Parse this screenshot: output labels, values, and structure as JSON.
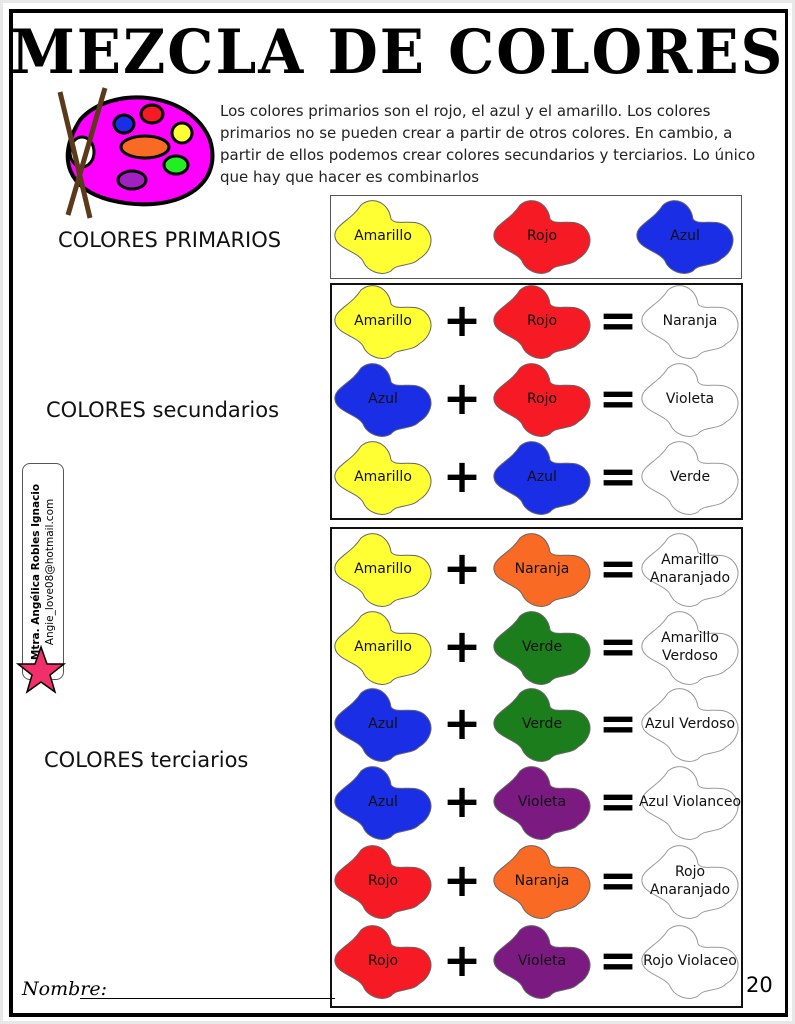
{
  "title": "MEZCLA DE COLORES",
  "intro": "Los colores primarios son el rojo, el azul y el amarillo. Los colores primarios no se pueden crear a partir de otros colores. En cambio, a partir de ellos podemos crear colores secundarios y terciarios. Lo único que hay que hacer es combinarlos",
  "sections": {
    "primary": "COLORES PRIMARIOS",
    "secondary": "COLORES secundarios",
    "tertiary": "COLORES terciarios"
  },
  "colors": {
    "Amarillo": "#ffff33",
    "Rojo": "#f51a24",
    "Azul": "#1a2ee6",
    "Naranja": "#f96a24",
    "Verde": "#1c7d1c",
    "Violeta": "#7b1a80",
    "result": "#ffffff"
  },
  "primaries": [
    "Amarillo",
    "Rojo",
    "Azul"
  ],
  "secondary_rows": [
    {
      "a": "Amarillo",
      "b": "Rojo",
      "result": "Naranja"
    },
    {
      "a": "Azul",
      "b": "Rojo",
      "result": "Violeta"
    },
    {
      "a": "Amarillo",
      "b": "Azul",
      "result": "Verde"
    }
  ],
  "tertiary_rows": [
    {
      "a": "Amarillo",
      "b": "Naranja",
      "result": "Amarillo Anaranjado"
    },
    {
      "a": "Amarillo",
      "b": "Verde",
      "result": "Amarillo Verdoso"
    },
    {
      "a": "Azul",
      "b": "Verde",
      "result": "Azul Verdoso"
    },
    {
      "a": "Azul",
      "b": "Violeta",
      "result": "Azul Violanceo"
    },
    {
      "a": "Rojo",
      "b": "Naranja",
      "result": "Rojo Anaranjado"
    },
    {
      "a": "Rojo",
      "b": "Violeta",
      "result": "Rojo Violaceo"
    }
  ],
  "operators": {
    "plus": "+",
    "equals": "="
  },
  "credit": {
    "name": "Mtra. Angélica Robles Ignacio",
    "email": "Angie_love08@hotmail.com"
  },
  "footer": {
    "name_label": "Nombre:",
    "page_number": "20"
  }
}
